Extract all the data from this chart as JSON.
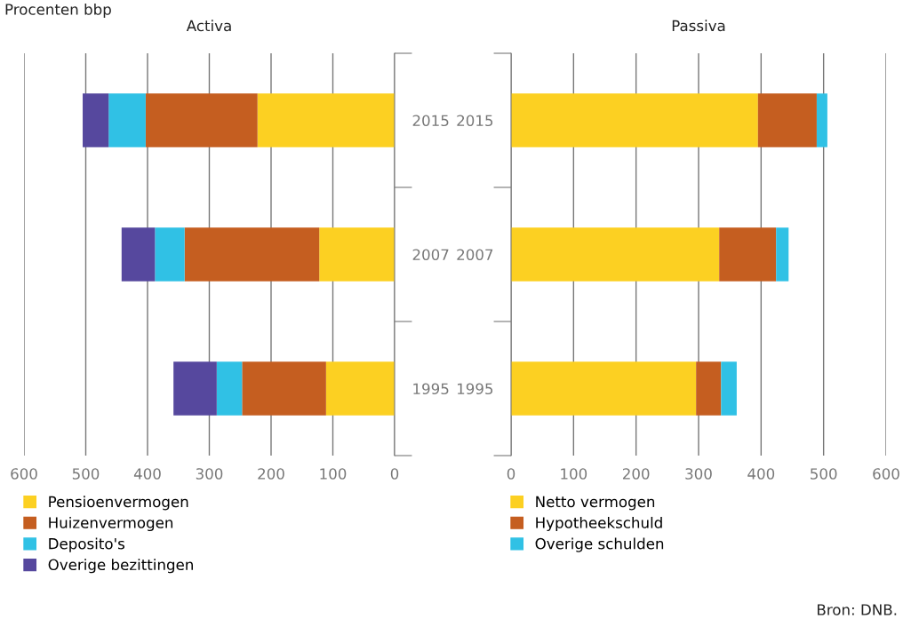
{
  "chart_data": [
    {
      "type": "bar",
      "orientation": "horizontal",
      "stacked": true,
      "title": "Activa",
      "annotations": [
        "Procenten bbp"
      ],
      "categories": [
        "2015",
        "2007",
        "1995"
      ],
      "xlim": [
        600,
        0
      ],
      "xticks": [
        600,
        500,
        400,
        300,
        200,
        100,
        0
      ],
      "grid": "x",
      "legend": "bottom",
      "series": [
        {
          "name": "Pensioenvermogen",
          "color": "#fcd022",
          "values": [
            222,
            122,
            111
          ]
        },
        {
          "name": "Huizenvermogen",
          "color": "#c55e20",
          "values": [
            181,
            218,
            136
          ]
        },
        {
          "name": "Deposito's",
          "color": "#30c1e5",
          "values": [
            60,
            48,
            41
          ]
        },
        {
          "name": "Overige bezittingen",
          "color": "#56489e",
          "values": [
            42,
            54,
            70
          ]
        }
      ]
    },
    {
      "type": "bar",
      "orientation": "horizontal",
      "stacked": true,
      "title": "Passiva",
      "annotations": [
        "Bron: DNB."
      ],
      "categories": [
        "2015",
        "2007",
        "1995"
      ],
      "xlim": [
        0,
        600
      ],
      "xticks": [
        0,
        100,
        200,
        300,
        400,
        500,
        600
      ],
      "grid": "x",
      "legend": "bottom",
      "series": [
        {
          "name": "Netto vermogen",
          "color": "#fcd022",
          "values": [
            395,
            333,
            296
          ]
        },
        {
          "name": "Hypotheekschuld",
          "color": "#c55e20",
          "values": [
            94,
            91,
            40
          ]
        },
        {
          "name": "Overige schulden",
          "color": "#30c1e5",
          "values": [
            17,
            20,
            25
          ]
        }
      ]
    }
  ]
}
